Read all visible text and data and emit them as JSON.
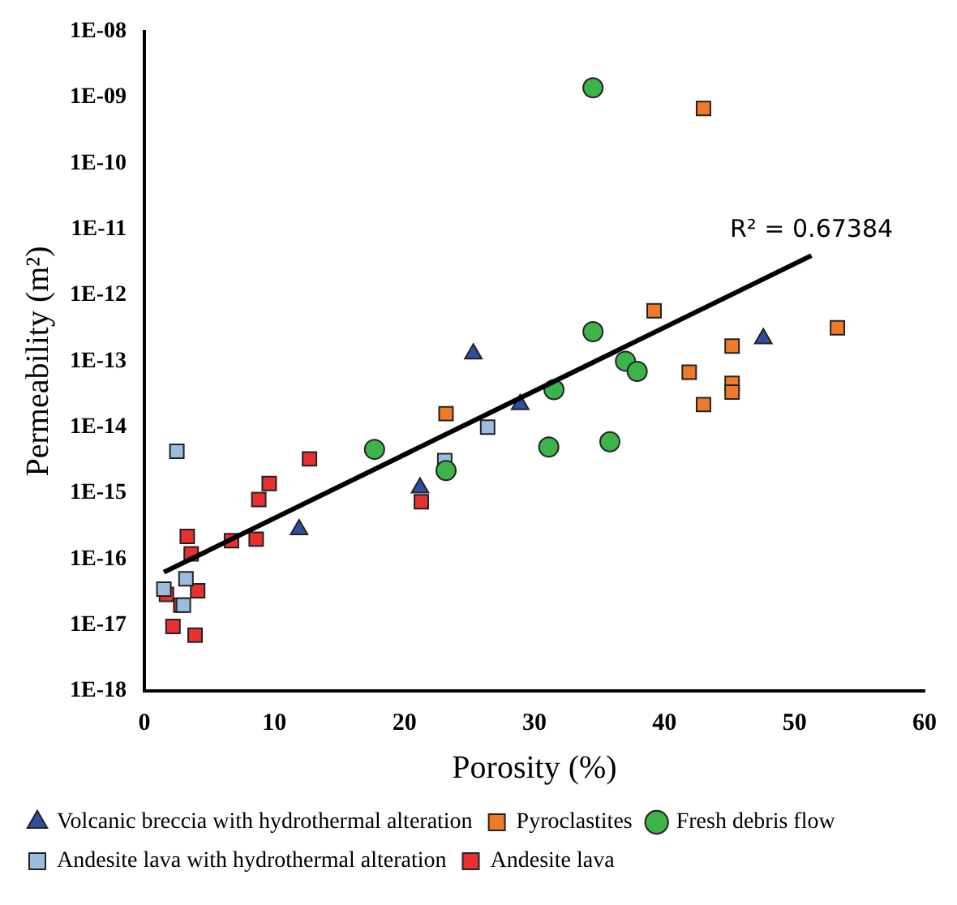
{
  "chart_data": {
    "type": "scatter",
    "xlabel": "Porosity (%)",
    "ylabel": "Permeability (m²)",
    "log": "y",
    "xlim": [
      0,
      60
    ],
    "xticks": [
      0,
      10,
      20,
      30,
      40,
      50,
      60
    ],
    "ylim": [
      1e-18,
      1e-08
    ],
    "yticks": [
      {
        "value": 1e-18,
        "label": "1E-18"
      },
      {
        "value": 1e-17,
        "label": "1E-17"
      },
      {
        "value": 1e-16,
        "label": "1E-16"
      },
      {
        "value": 1e-15,
        "label": "1E-15"
      },
      {
        "value": 1e-14,
        "label": "1E-14"
      },
      {
        "value": 1e-13,
        "label": "1E-13"
      },
      {
        "value": 1e-12,
        "label": "1E-12"
      },
      {
        "value": 1e-11,
        "label": "1E-11"
      },
      {
        "value": 1e-10,
        "label": "1E-10"
      },
      {
        "value": 1e-09,
        "label": "1E-09"
      },
      {
        "value": 1e-08,
        "label": "1E-08"
      }
    ],
    "grid": false,
    "legend": "bottom",
    "series": [
      {
        "name": "Andesite lava",
        "type": "scatter",
        "marker": "square",
        "color": "#e8312f",
        "x": [
          1.7,
          2.2,
          2.8,
          3.3,
          3.6,
          3.9,
          4.1,
          6.7,
          8.6,
          8.8,
          9.6,
          12.7,
          21.3
        ],
        "values": [
          2.9e-17,
          9.5e-18,
          2e-17,
          2.2e-16,
          1.2e-16,
          7e-18,
          3.3e-17,
          1.9e-16,
          2e-16,
          8e-16,
          1.4e-15,
          3.3e-15,
          7.4e-16
        ]
      },
      {
        "name": "Andesite lava with hydrothermal alteration",
        "type": "scatter",
        "marker": "square",
        "color": "#9dbde0",
        "x": [
          1.5,
          2.5,
          3.0,
          3.2,
          23.1,
          26.4
        ],
        "values": [
          3.5e-17,
          4.3e-15,
          2e-17,
          5e-17,
          3.1e-15,
          1e-14
        ]
      },
      {
        "name": "Fresh debris flow",
        "type": "scatter",
        "marker": "circle",
        "color": "#3cb44a",
        "x": [
          17.7,
          23.2,
          31.1,
          31.5,
          34.5,
          34.5,
          35.8,
          37.0,
          37.9
        ],
        "values": [
          4.6e-15,
          2.2e-15,
          5e-15,
          3.7e-14,
          2.8e-13,
          1.4e-09,
          6e-15,
          1e-13,
          7e-14
        ]
      },
      {
        "name": "Pyroclastites",
        "type": "scatter",
        "marker": "square",
        "color": "#f07a2a",
        "x": [
          23.2,
          39.2,
          41.9,
          43.0,
          43.0,
          45.2,
          45.2,
          45.2,
          53.3
        ],
        "values": [
          1.6e-14,
          5.8e-13,
          6.8e-14,
          2.2e-14,
          6.8e-10,
          1.7e-13,
          4.6e-14,
          3.4e-14,
          3.2e-13
        ]
      },
      {
        "name": "Volcanic breccia with hydrothermal alteration",
        "type": "scatter",
        "marker": "triangle",
        "color": "#2e4fa0",
        "x": [
          11.9,
          21.2,
          25.3,
          28.9,
          47.6
        ],
        "values": [
          2.8e-16,
          1.2e-15,
          1.3e-13,
          2.2e-14,
          2.2e-13
        ]
      },
      {
        "type": "line",
        "marker": "none",
        "line_style": "solid",
        "color": "#000000",
        "x": [
          1.5,
          51.3
        ],
        "values": [
          6.3e-17,
          4e-12
        ]
      }
    ],
    "annotations": [
      "R² = 0.67384"
    ]
  }
}
